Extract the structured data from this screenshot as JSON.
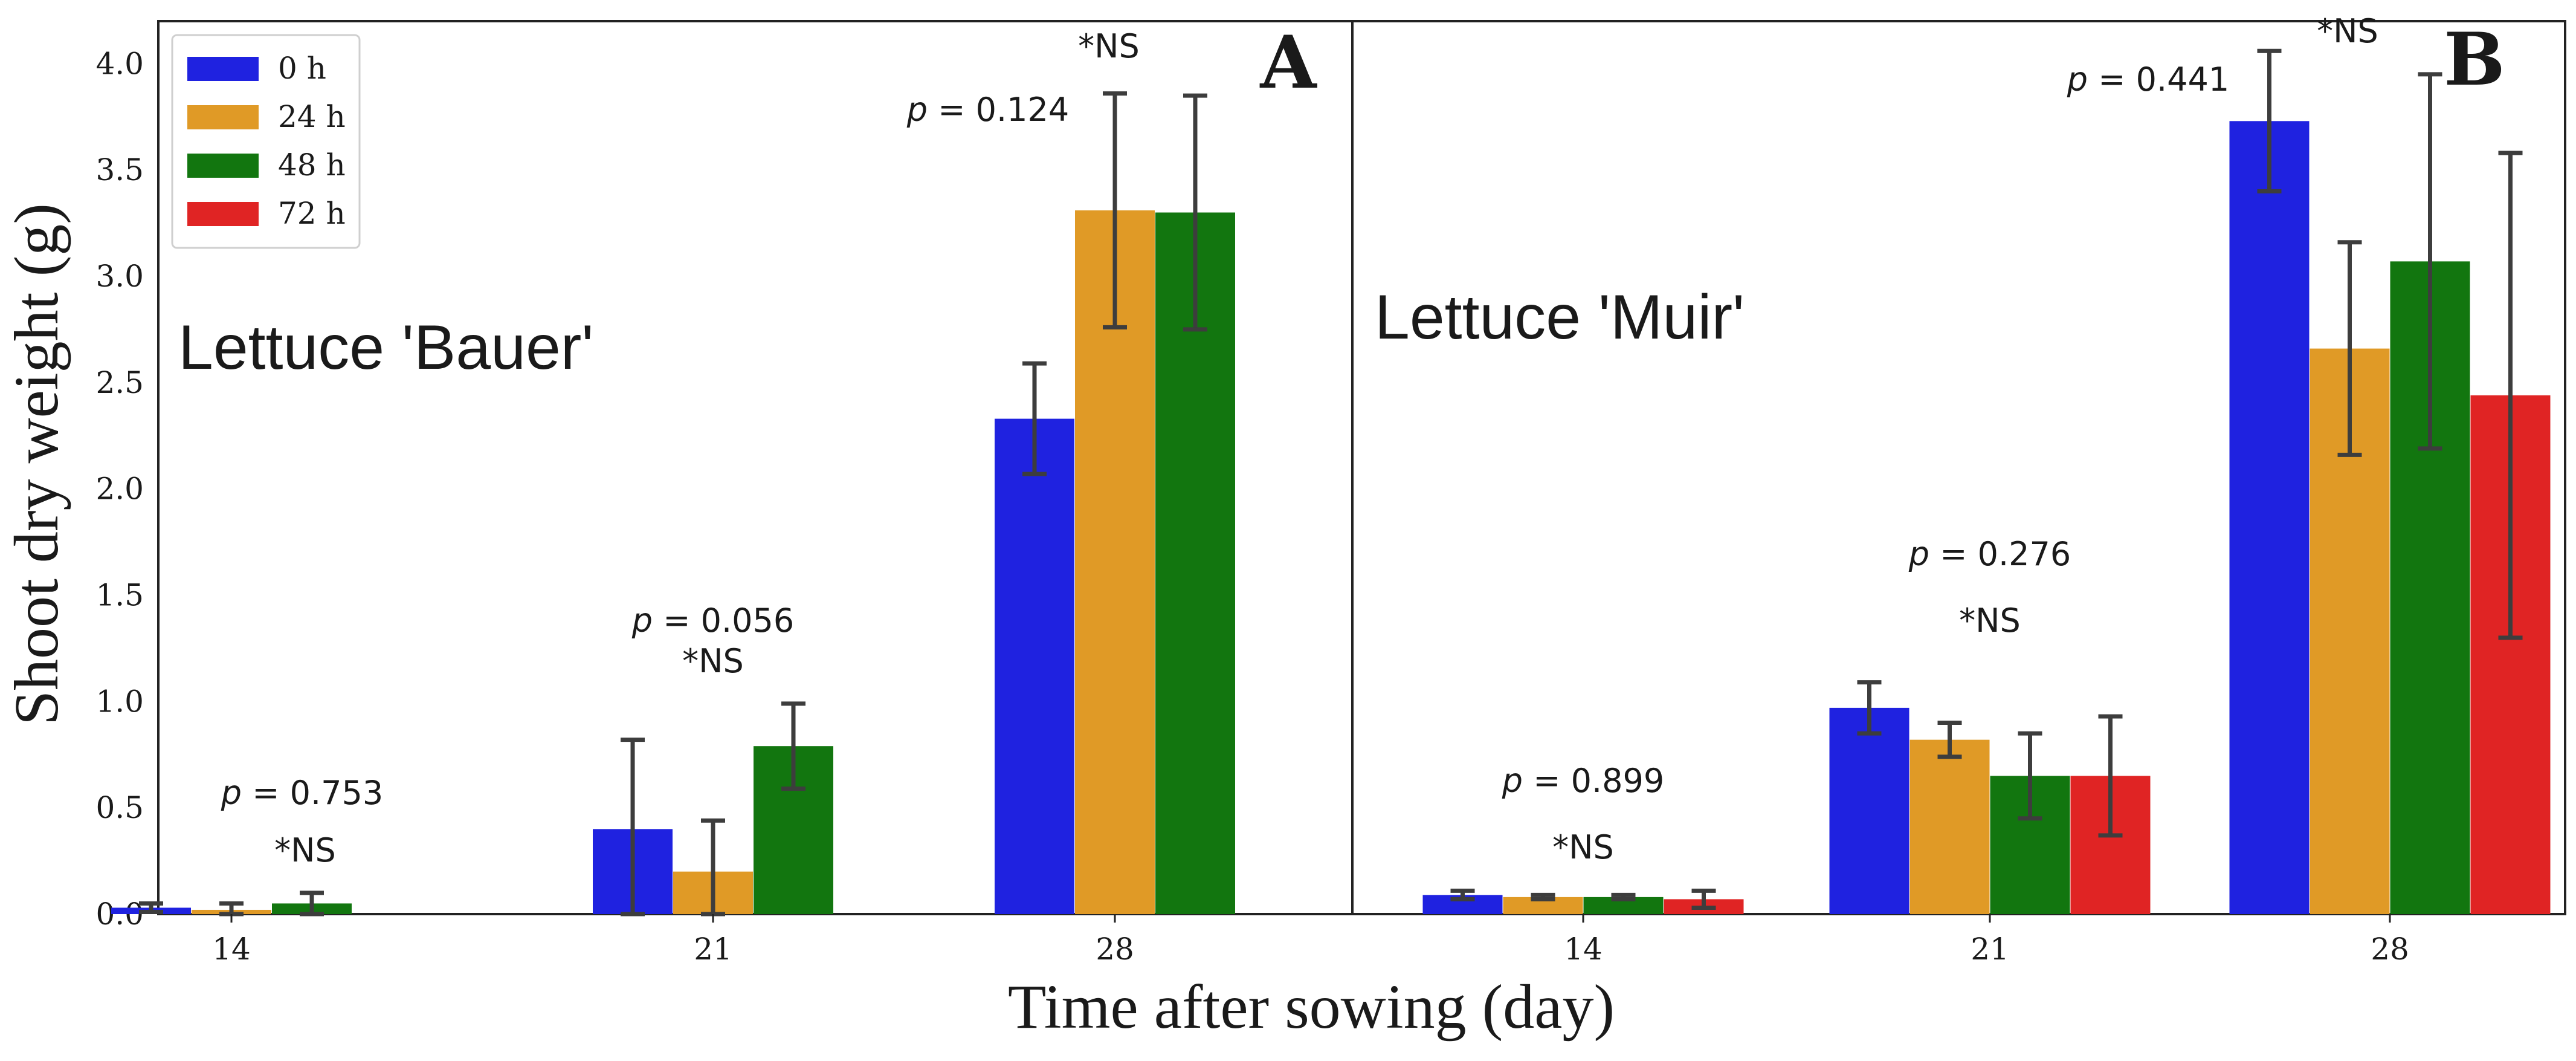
{
  "colors": {
    "0h": "#1f22e0",
    "24h": "#e09a26",
    "48h": "#12760f",
    "72h": "#e02424",
    "error": "#3d3d3d"
  },
  "axes": {
    "ylabel": "Shoot dry weight (g)",
    "xlabel": "Time after sowing (day)",
    "y_ticks": [
      "0.0",
      "0.5",
      "1.0",
      "1.5",
      "2.0",
      "2.5",
      "3.0",
      "3.5",
      "4.0"
    ]
  },
  "legend": {
    "entries": [
      "0 h",
      "24 h",
      "48 h",
      "72 h"
    ]
  },
  "chart_data": [
    {
      "type": "bar",
      "panel_letter": "A",
      "title": "Lettuce 'Bauer'",
      "categories": [
        "14",
        "21",
        "28"
      ],
      "ylim": [
        0,
        4.2
      ],
      "series": [
        {
          "name": "0 h",
          "values": [
            0.03,
            0.4,
            2.33
          ],
          "errors": [
            0.02,
            0.42,
            0.26
          ]
        },
        {
          "name": "24 h",
          "values": [
            0.02,
            0.2,
            3.31
          ],
          "errors": [
            0.03,
            0.24,
            0.55
          ]
        },
        {
          "name": "48 h",
          "values": [
            0.05,
            0.79,
            3.3
          ],
          "errors": [
            0.05,
            0.2,
            0.55
          ]
        }
      ],
      "annotations": [
        {
          "category": "14",
          "p_symbol": "p",
          "p_text": " = 0.753",
          "ns": "*NS"
        },
        {
          "category": "21",
          "p_symbol": "p",
          "p_text": " = 0.056",
          "ns": "*NS"
        },
        {
          "category": "28",
          "p_symbol": "p",
          "p_text": " = 0.124",
          "ns": "*NS"
        }
      ]
    },
    {
      "type": "bar",
      "panel_letter": "B",
      "title": "Lettuce 'Muir'",
      "categories": [
        "14",
        "21",
        "28"
      ],
      "ylim": [
        0,
        4.2
      ],
      "series": [
        {
          "name": "0 h",
          "values": [
            0.09,
            0.97,
            3.73
          ],
          "errors": [
            0.02,
            0.12,
            0.33
          ]
        },
        {
          "name": "24 h",
          "values": [
            0.08,
            0.82,
            2.66
          ],
          "errors": [
            0.01,
            0.08,
            0.5
          ]
        },
        {
          "name": "48 h",
          "values": [
            0.08,
            0.65,
            3.07
          ],
          "errors": [
            0.01,
            0.2,
            0.88
          ]
        },
        {
          "name": "72 h",
          "values": [
            0.07,
            0.65,
            2.44
          ],
          "errors": [
            0.04,
            0.28,
            1.14
          ]
        }
      ],
      "annotations": [
        {
          "category": "14",
          "p_symbol": "p",
          "p_text": " = 0.899",
          "ns": "*NS"
        },
        {
          "category": "21",
          "p_symbol": "p",
          "p_text": " = 0.276",
          "ns": "*NS"
        },
        {
          "category": "28",
          "p_symbol": "p",
          "p_text": " = 0.441",
          "ns": "*NS"
        }
      ]
    }
  ]
}
